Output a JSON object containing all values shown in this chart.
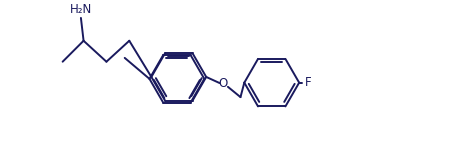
{
  "line_color": "#1a1a5e",
  "bg_color": "#ffffff",
  "line_width": 1.4,
  "font_size": 8.5,
  "nh2_label": "H₂N",
  "o_label": "O",
  "f_label": "F",
  "figsize": [
    4.49,
    1.5
  ],
  "dpi": 100,
  "xlim": [
    0,
    10.5
  ],
  "ylim": [
    0,
    3.8
  ]
}
